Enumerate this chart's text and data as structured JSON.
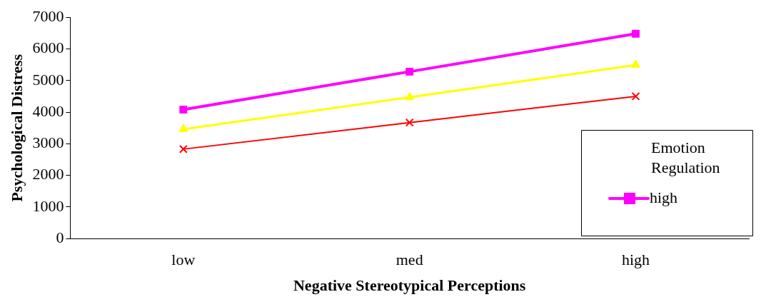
{
  "chart_data": {
    "type": "line",
    "xlabel": "Negative Stereotypical Perceptions",
    "ylabel": "Psychological Distress",
    "legend_title": "Emotion Regulation",
    "categories": [
      "low",
      "med",
      "high"
    ],
    "series": [
      {
        "name": "high",
        "color": "#ff00ff",
        "marker": "square",
        "values": [
          4080,
          5280,
          6480
        ]
      },
      {
        "color": "#ffff00",
        "marker": "triangle",
        "values": [
          3460,
          4470,
          5490
        ]
      },
      {
        "color": "#ff0000",
        "marker": "cross",
        "values": [
          2830,
          3670,
          4500
        ]
      }
    ],
    "ylim": [
      0,
      7000
    ],
    "yticks": [
      0,
      1000,
      2000,
      3000,
      4000,
      5000,
      6000,
      7000
    ],
    "grid": false,
    "legend": "right"
  }
}
